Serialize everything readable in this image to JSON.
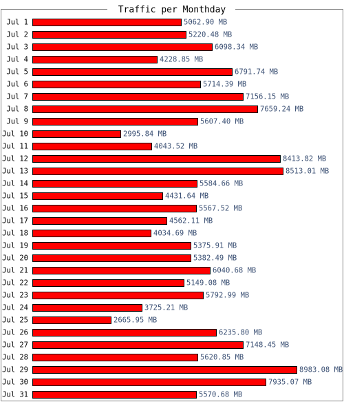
{
  "chart_data": {
    "type": "bar",
    "orientation": "horizontal",
    "title": "Traffic per Monthday",
    "unit": "MB",
    "categories": [
      "Jul 1",
      "Jul 2",
      "Jul 3",
      "Jul 4",
      "Jul 5",
      "Jul 6",
      "Jul 7",
      "Jul 8",
      "Jul 9",
      "Jul 10",
      "Jul 11",
      "Jul 12",
      "Jul 13",
      "Jul 14",
      "Jul 15",
      "Jul 16",
      "Jul 17",
      "Jul 18",
      "Jul 19",
      "Jul 20",
      "Jul 21",
      "Jul 22",
      "Jul 23",
      "Jul 24",
      "Jul 25",
      "Jul 26",
      "Jul 27",
      "Jul 28",
      "Jul 29",
      "Jul 30",
      "Jul 31"
    ],
    "values": [
      5062.9,
      5220.48,
      6098.34,
      4228.85,
      6791.74,
      5714.39,
      7156.15,
      7659.24,
      5607.4,
      2995.84,
      4043.52,
      8413.82,
      8513.01,
      5584.66,
      4431.64,
      5567.52,
      4562.11,
      4034.69,
      5375.91,
      5382.49,
      6040.68,
      5149.08,
      5792.99,
      3725.21,
      2665.95,
      6235.8,
      7148.45,
      5620.85,
      8983.08,
      7935.07,
      5570.68
    ],
    "value_labels": [
      "5062.90 MB",
      "5220.48 MB",
      "6098.34 MB",
      "4228.85 MB",
      "6791.74 MB",
      "5714.39 MB",
      "7156.15 MB",
      "7659.24 MB",
      "5607.40 MB",
      "2995.84 MB",
      "4043.52 MB",
      "8413.82 MB",
      "8513.01 MB",
      "5584.66 MB",
      "4431.64 MB",
      "5567.52 MB",
      "4562.11 MB",
      "4034.69 MB",
      "5375.91 MB",
      "5382.49 MB",
      "6040.68 MB",
      "5149.08 MB",
      "5792.99 MB",
      "3725.21 MB",
      "2665.95 MB",
      "6235.80 MB",
      "7148.45 MB",
      "5620.85 MB",
      "8983.08 MB",
      "7935.07 MB",
      "5570.68 MB"
    ],
    "bar_color": "#ff0000",
    "bar_border_color": "#000000",
    "value_text_color": "#3a4f73",
    "frame_color": "#808080",
    "legend": "none",
    "grid": false
  }
}
